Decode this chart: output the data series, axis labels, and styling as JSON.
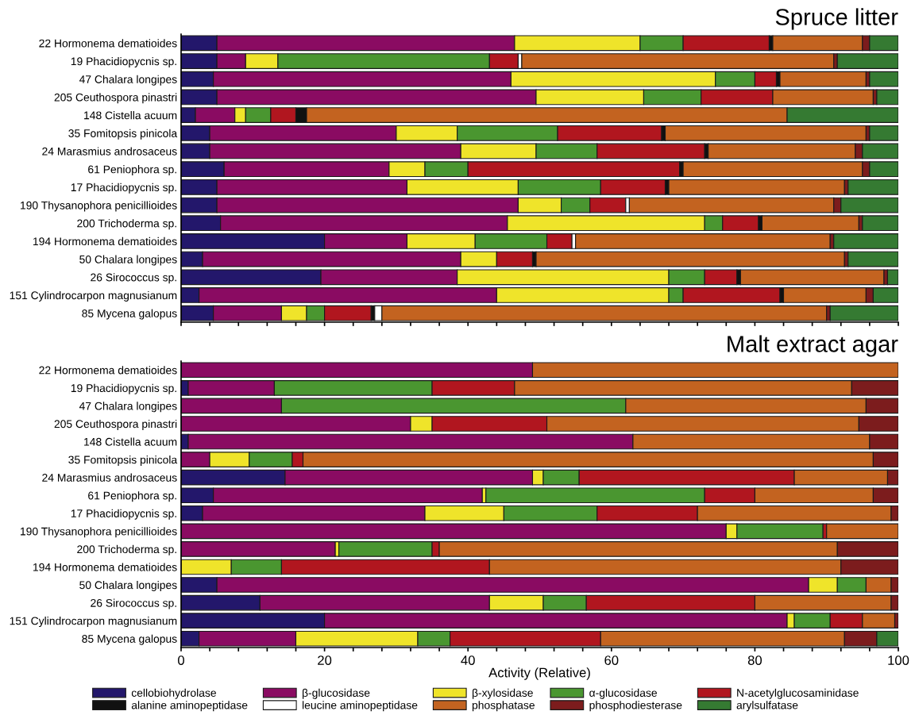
{
  "chart_data": [
    {
      "type": "bar",
      "orientation": "horizontal",
      "stacked": true,
      "title": "Spruce litter",
      "tick_labels": "y",
      "legend": "bottom",
      "categories": [
        "22 Hormonema dematioides",
        "19 Phacidiopycnis sp.",
        "47 Chalara longipes",
        "205 Ceuthospora pinastri",
        "148 Cistella acuum",
        "35 Fomitopsis pinicola",
        "24 Marasmius androsaceus",
        "61 Peniophora sp.",
        "17 Phacidiopycnis sp.",
        "190 Thysanophora penicillioides",
        "200 Trichoderma sp.",
        "194 Hormonema dematioides",
        "50 Chalara longipes",
        "26 Sirococcus sp.",
        "151 Cylindrocarpon magnusianum",
        "85 Mycena galopus"
      ],
      "xlim": [
        0,
        100
      ],
      "xticks": [
        0,
        {
          "value": 4,
          "label": null
        },
        {
          "value": 8,
          "label": null
        },
        {
          "value": 12,
          "label": null
        },
        {
          "value": 16,
          "label": null
        },
        {
          "value": 20,
          "label": null
        },
        {
          "value": 24,
          "label": null
        },
        {
          "value": 28,
          "label": null
        },
        {
          "value": 32,
          "label": null
        },
        {
          "value": 36,
          "label": null
        },
        {
          "value": 40,
          "label": null
        },
        {
          "value": 44,
          "label": null
        },
        {
          "value": 48,
          "label": null
        },
        {
          "value": 52,
          "label": null
        },
        {
          "value": 56,
          "label": null
        },
        {
          "value": 60,
          "label": null
        },
        {
          "value": 64,
          "label": null
        },
        {
          "value": 68,
          "label": null
        },
        {
          "value": 72,
          "label": null
        },
        {
          "value": 76,
          "label": null
        },
        {
          "value": 80,
          "label": null
        },
        {
          "value": 84,
          "label": null
        },
        {
          "value": 88,
          "label": null
        },
        {
          "value": 92,
          "label": null
        },
        {
          "value": 96,
          "label": null
        },
        {
          "value": 100,
          "label": null
        }
      ],
      "series": [
        {
          "name": "cellobiohydrolase",
          "color": "#23176b",
          "values": [
            5,
            5,
            4.5,
            5,
            2,
            4,
            4,
            6,
            5,
            5,
            5.5,
            20,
            3,
            19.5,
            2.5,
            4.5
          ]
        },
        {
          "name": "β-glucosidase",
          "color": "#8a0b62",
          "values": [
            41.5,
            4,
            41.5,
            44.5,
            5.5,
            26,
            35,
            23,
            26.5,
            42,
            40,
            11.5,
            36,
            19,
            41.5,
            9.5
          ]
        },
        {
          "name": "β-xylosidase",
          "color": "#efe42a",
          "values": [
            17.5,
            4.5,
            28.5,
            15,
            1.5,
            8.5,
            10.5,
            5,
            15.5,
            6,
            27.5,
            9.5,
            5,
            29.5,
            24,
            3.5
          ]
        },
        {
          "name": "α-glucosidase",
          "color": "#4a9630",
          "values": [
            6,
            29.5,
            5.5,
            8,
            3.5,
            14,
            8.5,
            6,
            11.5,
            4,
            2.5,
            10,
            0,
            5,
            2,
            2.5
          ]
        },
        {
          "name": "N-acetylglucosaminidase",
          "color": "#b1161f",
          "values": [
            12,
            4,
            3,
            10,
            3.5,
            14.5,
            15,
            29.5,
            9,
            5,
            5,
            3.5,
            5,
            4.5,
            13.5,
            6.5
          ]
        },
        {
          "name": "alanine aminopeptidase",
          "color": "#111111",
          "values": [
            0.5,
            0,
            0.5,
            0,
            1.5,
            0.5,
            0.5,
            0.5,
            0.5,
            0,
            0.5,
            0,
            0.5,
            0.5,
            0.5,
            0.5
          ]
        },
        {
          "name": "leucine aminopeptidase",
          "color": "#ffffff",
          "values": [
            0,
            0.5,
            0,
            0,
            0,
            0,
            0,
            0,
            0,
            0.5,
            0,
            0.5,
            0,
            0,
            0,
            1
          ]
        },
        {
          "name": "phosphatase",
          "color": "#c36320",
          "values": [
            12.5,
            43.5,
            12,
            14,
            67,
            28,
            20.5,
            25,
            24.5,
            28.5,
            13.5,
            35.5,
            43,
            20,
            11.5,
            62
          ]
        },
        {
          "name": "phosphodiesterase",
          "color": "#7c1c1d",
          "values": [
            1,
            0.5,
            0.5,
            0.5,
            0,
            0.5,
            1,
            1,
            0.5,
            1,
            0.5,
            0.5,
            0.5,
            0.5,
            1,
            0.5
          ]
        },
        {
          "name": "arylsulfatase",
          "color": "#357a32",
          "values": [
            4,
            8.5,
            4,
            3,
            15.5,
            4,
            5,
            4,
            7,
            8,
            5,
            9,
            7,
            1.5,
            3.5,
            9.5
          ]
        }
      ]
    },
    {
      "type": "bar",
      "orientation": "horizontal",
      "stacked": true,
      "title": "Malt extract agar",
      "xlabel": "Activity (Relative)",
      "legend": "bottom",
      "categories": [
        "22 Hormonema dematioides",
        "19 Phacidiopycnis sp.",
        "47 Chalara longipes",
        "205 Ceuthospora pinastri",
        "148 Cistella acuum",
        "35 Fomitopsis pinicola",
        "24 Marasmius androsaceus",
        "61 Peniophora sp.",
        "17 Phacidiopycnis sp.",
        "190 Thysanophora penicillioides",
        "200 Trichoderma sp.",
        "194 Hormonema dematioides",
        "50 Chalara longipes",
        "26 Sirococcus sp.",
        "151 Cylindrocarpon magnusianum",
        "85 Mycena galopus"
      ],
      "xlim": [
        0,
        100
      ],
      "xticks": [
        0,
        {
          "value": 4,
          "label": null
        },
        {
          "value": 8,
          "label": null
        },
        {
          "value": 12,
          "label": null
        },
        {
          "value": 16,
          "label": null
        },
        20,
        {
          "value": 24,
          "label": null
        },
        {
          "value": 28,
          "label": null
        },
        {
          "value": 32,
          "label": null
        },
        {
          "value": 36,
          "label": null
        },
        40,
        {
          "value": 44,
          "label": null
        },
        {
          "value": 48,
          "label": null
        },
        {
          "value": 52,
          "label": null
        },
        {
          "value": 56,
          "label": null
        },
        60,
        {
          "value": 64,
          "label": null
        },
        {
          "value": 68,
          "label": null
        },
        {
          "value": 72,
          "label": null
        },
        {
          "value": 76,
          "label": null
        },
        80,
        {
          "value": 84,
          "label": null
        },
        {
          "value": 88,
          "label": null
        },
        {
          "value": 92,
          "label": null
        },
        {
          "value": 96,
          "label": null
        },
        100
      ],
      "series": [
        {
          "name": "cellobiohydrolase",
          "color": "#23176b",
          "values": [
            0,
            1,
            0,
            0,
            1,
            0,
            14.5,
            4.5,
            3,
            0,
            0,
            0,
            5,
            11,
            20,
            2.5
          ]
        },
        {
          "name": "β-glucosidase",
          "color": "#8a0b62",
          "values": [
            49,
            12,
            14,
            32,
            62,
            4,
            34.5,
            37.5,
            31,
            76,
            21.5,
            0,
            82.5,
            32,
            64.5,
            13.5
          ]
        },
        {
          "name": "β-xylosidase",
          "color": "#efe42a",
          "values": [
            0,
            0,
            0,
            3,
            0,
            5.5,
            1.5,
            0.5,
            11,
            1.5,
            0.5,
            7,
            4,
            7.5,
            1,
            17
          ]
        },
        {
          "name": "α-glucosidase",
          "color": "#4a9630",
          "values": [
            0,
            22,
            48,
            0,
            0,
            6,
            5,
            30.5,
            13,
            12,
            13,
            7,
            4,
            6,
            5,
            4.5
          ]
        },
        {
          "name": "N-acetylglucosaminidase",
          "color": "#b1161f",
          "values": [
            0,
            11.5,
            0,
            16,
            0,
            1.5,
            30,
            7,
            14,
            0.5,
            1,
            29,
            0,
            23.5,
            4.5,
            21
          ]
        },
        {
          "name": "alanine aminopeptidase",
          "color": "#111111",
          "values": [
            0,
            0,
            0,
            0,
            0,
            0,
            0,
            0,
            0,
            0,
            0,
            0,
            0,
            0,
            0,
            0
          ]
        },
        {
          "name": "leucine aminopeptidase",
          "color": "#ffffff",
          "values": [
            0,
            0,
            0,
            0,
            0,
            0,
            0,
            0,
            0,
            0,
            0,
            0,
            0,
            0,
            0,
            0
          ]
        },
        {
          "name": "phosphatase",
          "color": "#c36320",
          "values": [
            51,
            47,
            33.5,
            43.5,
            33,
            79.5,
            13,
            16.5,
            27,
            10,
            55.5,
            49,
            3.5,
            19,
            4.5,
            34
          ]
        },
        {
          "name": "phosphodiesterase",
          "color": "#7c1c1d",
          "values": [
            0,
            6.5,
            4.5,
            5.5,
            4,
            3.5,
            1.5,
            3.5,
            1,
            0,
            8.5,
            8,
            1,
            1,
            0.5,
            4.5
          ]
        },
        {
          "name": "arylsulfatase",
          "color": "#357a32",
          "values": [
            0,
            0,
            0,
            0,
            0,
            0,
            0,
            0,
            0,
            0,
            0,
            0,
            0,
            0,
            0,
            3
          ]
        }
      ]
    }
  ]
}
